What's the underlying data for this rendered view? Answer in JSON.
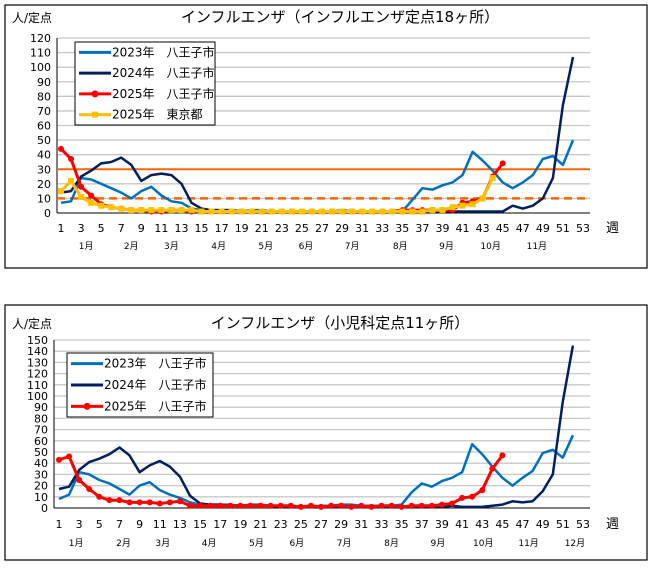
{
  "chart_data": [
    {
      "type": "line",
      "title": "インフルエンザ（インフルエンザ定点18ヶ所）",
      "ylabel": "人/定点",
      "xlabel": "週",
      "ylim": [
        0,
        120
      ],
      "yticks": [
        0,
        10,
        20,
        30,
        40,
        50,
        60,
        70,
        80,
        90,
        100,
        110,
        120
      ],
      "xticks": [
        1,
        3,
        5,
        7,
        9,
        11,
        13,
        15,
        17,
        19,
        21,
        23,
        25,
        27,
        29,
        31,
        33,
        35,
        37,
        39,
        41,
        43,
        45,
        47,
        49,
        51,
        53
      ],
      "xlim": [
        1,
        53
      ],
      "grid": true,
      "legend": "top-left",
      "months": [
        {
          "label": "1月",
          "week": 3.5
        },
        {
          "label": "2月",
          "week": 8
        },
        {
          "label": "3月",
          "week": 12
        },
        {
          "label": "4月",
          "week": 16.7
        },
        {
          "label": "5月",
          "week": 21.4
        },
        {
          "label": "6月",
          "week": 25.4
        },
        {
          "label": "7月",
          "week": 30
        },
        {
          "label": "8月",
          "week": 34.8
        },
        {
          "label": "9月",
          "week": 39.4
        },
        {
          "label": "10月",
          "week": 43.8
        },
        {
          "label": "11月",
          "week": 48.4
        }
      ],
      "thresholds": [
        {
          "value": 30,
          "style": "solid",
          "color": "#ff6600"
        },
        {
          "value": 10,
          "style": "dashed",
          "color": "#ff6600"
        }
      ],
      "series": [
        {
          "name": "2023年　八王子市",
          "color": "#0070c0",
          "marker": "none",
          "values": [
            7,
            8,
            24,
            23,
            20,
            17,
            14,
            10,
            15,
            18,
            12,
            8,
            7,
            3,
            2,
            2,
            2,
            2,
            1,
            2,
            2,
            1,
            1,
            1,
            1,
            1,
            1,
            1,
            2,
            1,
            1,
            1,
            1,
            1,
            1,
            9,
            17,
            16,
            19,
            21,
            26,
            42,
            36,
            29,
            21,
            17,
            21,
            26,
            37,
            39,
            33,
            50
          ]
        },
        {
          "name": "2024年　八王子市",
          "color": "#002060",
          "marker": "none",
          "values": [
            14,
            15,
            25,
            29,
            34,
            35,
            38,
            33,
            22,
            26,
            27,
            26,
            20,
            7,
            3,
            2,
            2,
            2,
            1,
            1,
            1,
            1,
            1,
            1,
            1,
            1,
            1,
            1,
            1,
            1,
            1,
            1,
            1,
            1,
            1,
            1,
            1,
            1,
            1,
            1,
            1,
            1,
            1,
            1,
            1,
            5,
            3,
            5,
            10,
            24,
            74,
            107
          ]
        },
        {
          "name": "2025年　八王子市",
          "color": "#ff0000",
          "marker": "circle",
          "values": [
            44,
            37,
            18,
            12,
            6,
            4,
            3,
            2,
            2,
            1,
            1,
            2,
            2,
            1,
            1,
            1,
            1,
            1,
            1,
            1,
            1,
            1,
            1,
            1,
            1,
            1,
            1,
            1,
            1,
            1,
            1,
            1,
            1,
            1,
            2,
            2,
            2,
            2,
            2,
            2,
            7,
            8,
            10,
            25,
            34
          ]
        },
        {
          "name": "2025年　東京都",
          "color": "#ffc000",
          "marker": "square",
          "values": [
            15,
            22,
            11,
            7,
            5,
            4,
            3,
            2,
            2,
            2,
            2,
            2,
            2,
            2,
            1,
            1,
            1,
            1,
            1,
            1,
            1,
            1,
            1,
            1,
            1,
            1,
            1,
            1,
            1,
            1,
            1,
            1,
            1,
            1,
            1,
            1,
            1,
            2,
            2,
            4,
            5,
            6,
            10,
            24
          ]
        }
      ]
    },
    {
      "type": "line",
      "title": "インフルエンザ（小児科定点11ヶ所）",
      "ylabel": "人/定点",
      "xlabel": "週",
      "ylim": [
        0,
        150
      ],
      "yticks": [
        0,
        10,
        20,
        30,
        40,
        50,
        60,
        70,
        80,
        90,
        100,
        110,
        120,
        130,
        140,
        150
      ],
      "xticks": [
        1,
        3,
        5,
        7,
        9,
        11,
        13,
        15,
        17,
        19,
        21,
        23,
        25,
        27,
        29,
        31,
        33,
        35,
        37,
        39,
        41,
        43,
        45,
        47,
        49,
        51,
        53
      ],
      "xlim": [
        1,
        53
      ],
      "grid": true,
      "legend": "top-left",
      "months": [
        {
          "label": "1月",
          "week": 2.7
        },
        {
          "label": "2月",
          "week": 7.4
        },
        {
          "label": "3月",
          "week": 11.3
        },
        {
          "label": "4月",
          "week": 15.9
        },
        {
          "label": "5月",
          "week": 20.6
        },
        {
          "label": "6月",
          "week": 24.6
        },
        {
          "label": "7月",
          "week": 29.3
        },
        {
          "label": "8月",
          "week": 34
        },
        {
          "label": "9月",
          "week": 38.6
        },
        {
          "label": "10月",
          "week": 43.1
        },
        {
          "label": "11月",
          "week": 47.6
        },
        {
          "label": "12月",
          "week": 52.2
        }
      ],
      "thresholds": [],
      "series": [
        {
          "name": "2023年　八王子市",
          "color": "#0070c0",
          "marker": "none",
          "values": [
            8,
            12,
            32,
            30,
            25,
            22,
            17,
            12,
            20,
            23,
            16,
            12,
            9,
            5,
            3,
            3,
            3,
            3,
            2,
            3,
            3,
            2,
            2,
            2,
            1,
            1,
            2,
            2,
            3,
            3,
            2,
            2,
            2,
            2,
            3,
            14,
            22,
            19,
            24,
            27,
            32,
            57,
            48,
            37,
            27,
            20,
            27,
            33,
            49,
            52,
            45,
            65
          ]
        },
        {
          "name": "2024年　八王子市",
          "color": "#002060",
          "marker": "none",
          "values": [
            17,
            19,
            34,
            41,
            44,
            48,
            54,
            47,
            32,
            38,
            42,
            37,
            28,
            11,
            4,
            3,
            3,
            2,
            2,
            2,
            2,
            2,
            1,
            1,
            1,
            1,
            1,
            1,
            1,
            1,
            1,
            1,
            1,
            1,
            1,
            1,
            1,
            1,
            1,
            2,
            1,
            1,
            1,
            2,
            3,
            6,
            5,
            6,
            15,
            30,
            95,
            145
          ]
        },
        {
          "name": "2025年　八王子市",
          "color": "#ff0000",
          "marker": "circle",
          "values": [
            43,
            46,
            25,
            17,
            10,
            7,
            7,
            5,
            5,
            5,
            4,
            5,
            6,
            2,
            2,
            2,
            2,
            2,
            2,
            2,
            2,
            2,
            2,
            2,
            1,
            2,
            1,
            2,
            2,
            1,
            2,
            1,
            2,
            2,
            1,
            2,
            2,
            2,
            3,
            4,
            9,
            10,
            16,
            35,
            47
          ]
        }
      ]
    }
  ]
}
